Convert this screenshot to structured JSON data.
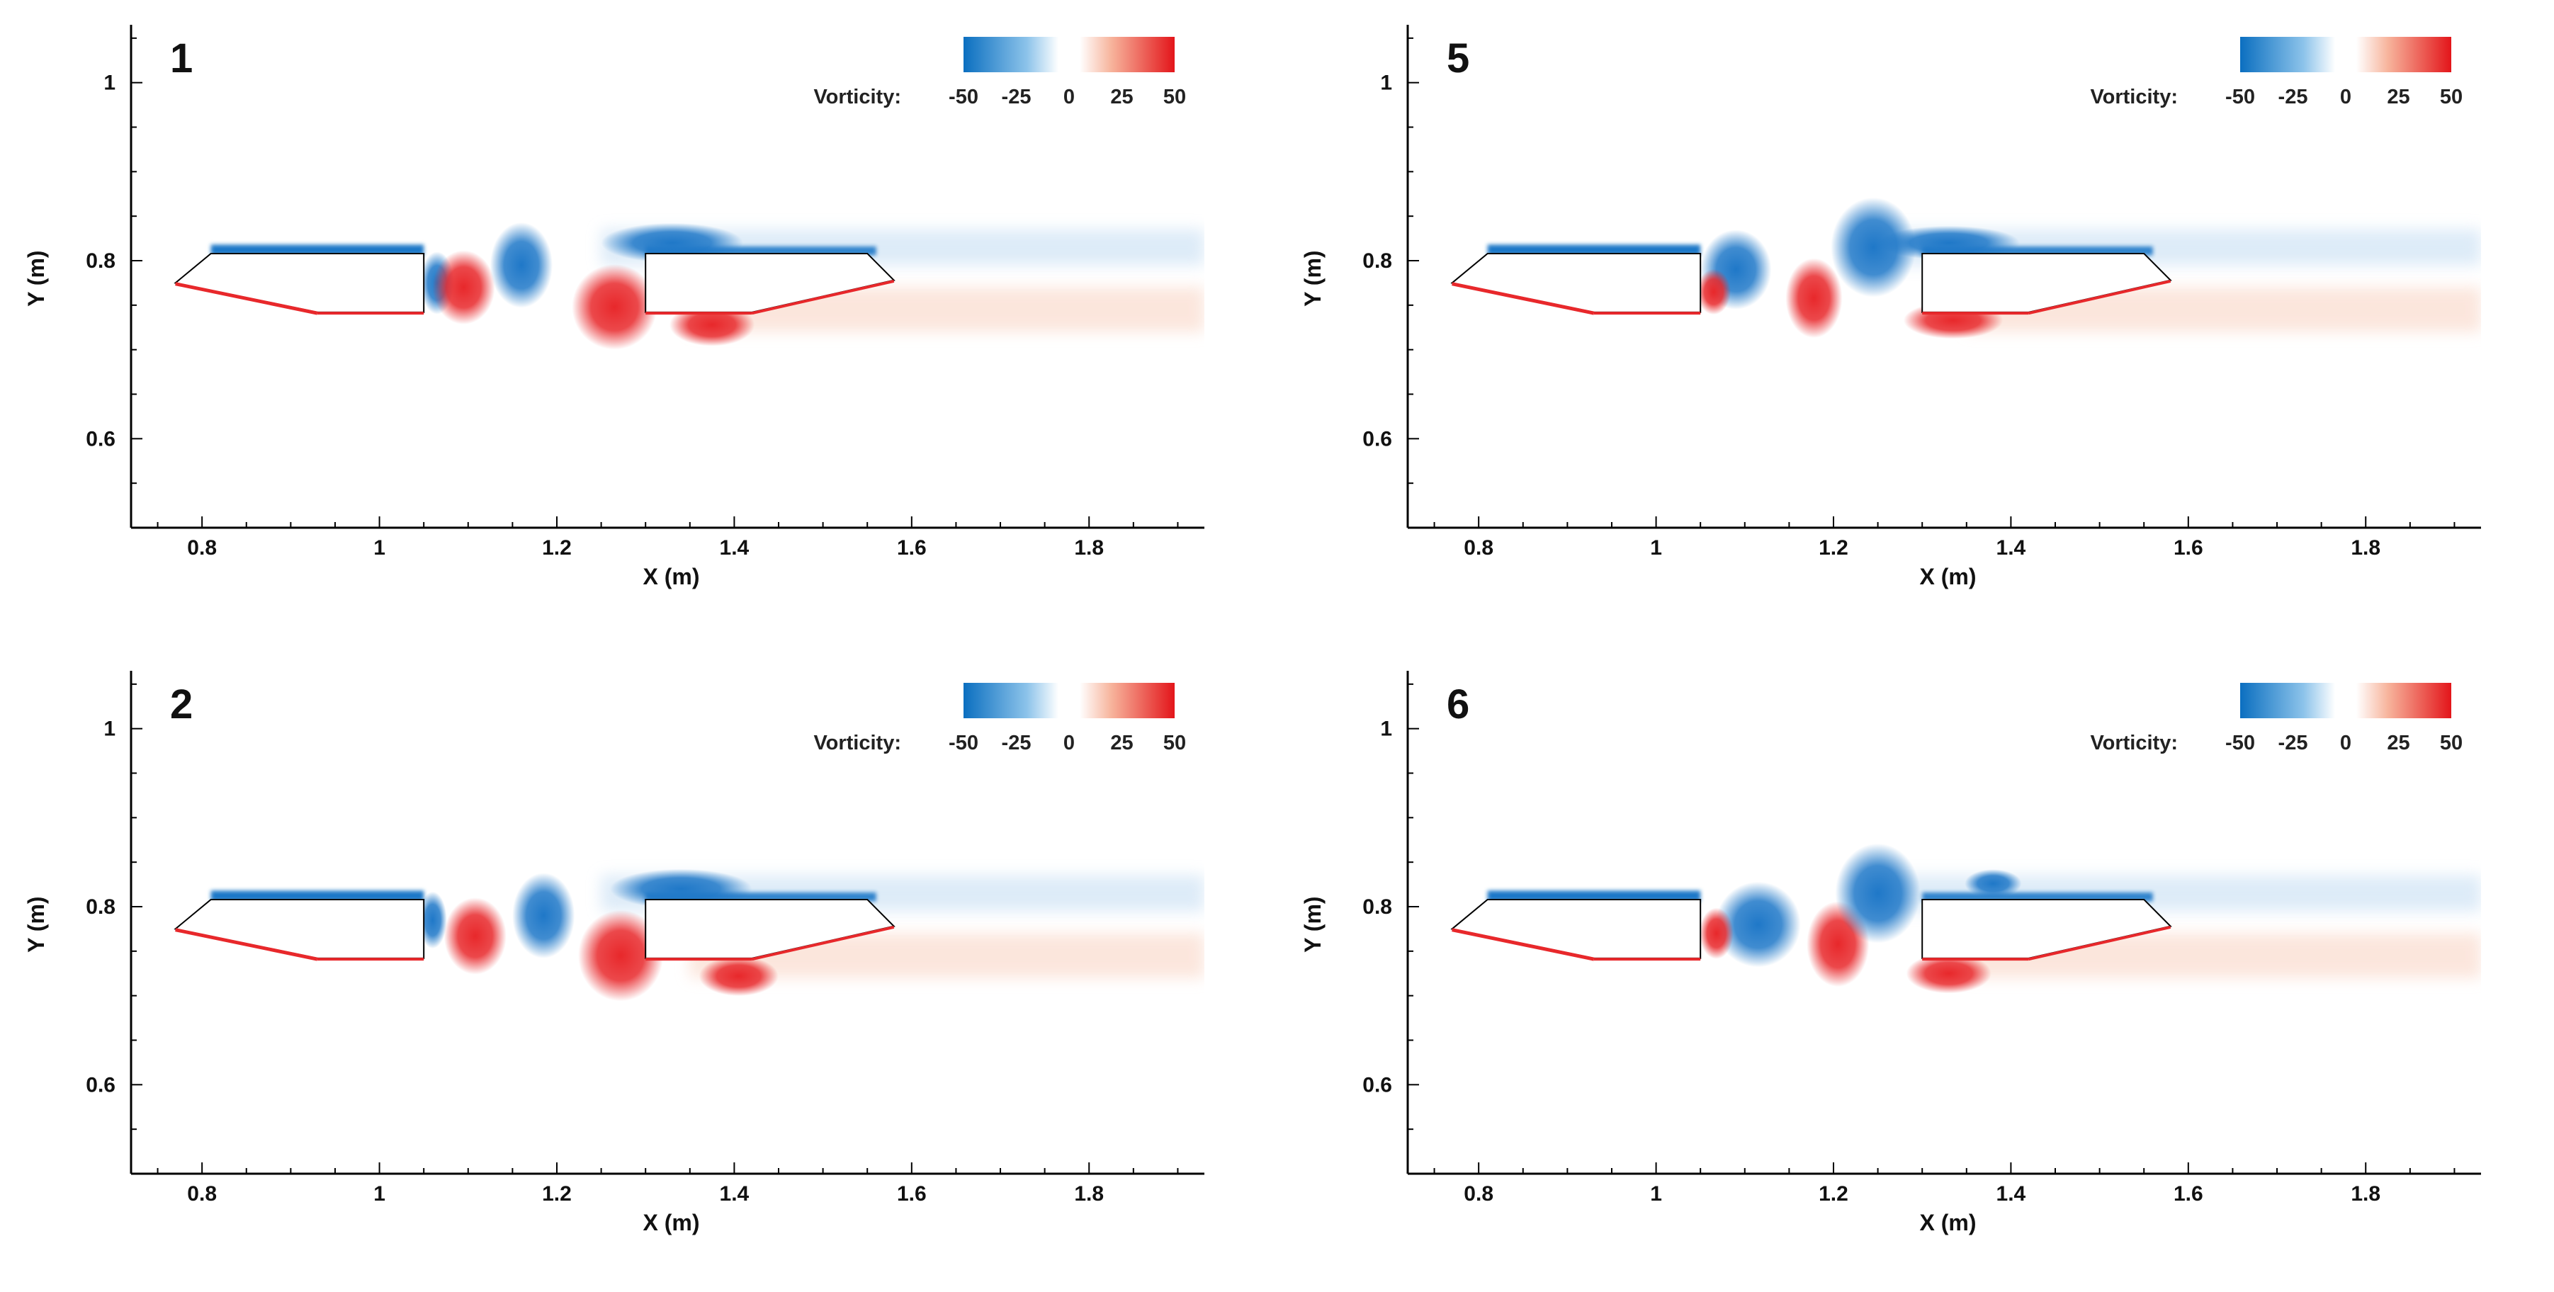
{
  "colors": {
    "negative": "#1f78c8",
    "positive": "#e8282b",
    "neutral": "#ffffff",
    "body_outline": "#000000"
  },
  "colorbar": {
    "title": "Vorticity:",
    "ticks": [
      "-50",
      "-25",
      "0",
      "25",
      "50"
    ],
    "range": [
      -50,
      50
    ]
  },
  "chart_data": [
    {
      "type": "heatmap",
      "panel_label": "1",
      "xlabel": "X (m)",
      "ylabel": "Y (m)",
      "xlim": [
        0.72,
        1.93
      ],
      "ylim": [
        0.5,
        1.065
      ],
      "xticks": [
        0.8,
        1,
        1.2,
        1.4,
        1.6,
        1.8
      ],
      "xtick_labels": [
        "0.8",
        "1",
        "1.2",
        "1.4",
        "1.6",
        "1.8"
      ],
      "yticks": [
        0.6,
        0.8,
        1
      ],
      "ytick_labels": [
        "0.6",
        "0.8",
        "1"
      ],
      "vortices": [
        {
          "sign": "neg",
          "x": 1.065,
          "y": 0.775,
          "rx": 0.012,
          "ry": 0.022
        },
        {
          "sign": "pos",
          "x": 1.095,
          "y": 0.77,
          "rx": 0.022,
          "ry": 0.026
        },
        {
          "sign": "neg",
          "x": 1.16,
          "y": 0.795,
          "rx": 0.022,
          "ry": 0.03
        },
        {
          "sign": "pos",
          "x": 1.265,
          "y": 0.748,
          "rx": 0.03,
          "ry": 0.03
        },
        {
          "sign": "pos",
          "x": 1.375,
          "y": 0.728,
          "rx": 0.03,
          "ry": 0.015
        },
        {
          "sign": "neg",
          "x": 1.33,
          "y": 0.82,
          "rx": 0.05,
          "ry": 0.014
        }
      ]
    },
    {
      "type": "heatmap",
      "panel_label": "5",
      "xlabel": "X (m)",
      "ylabel": "Y (m)",
      "xlim": [
        0.72,
        1.93
      ],
      "ylim": [
        0.5,
        1.065
      ],
      "xticks": [
        0.8,
        1,
        1.2,
        1.4,
        1.6,
        1.8
      ],
      "xtick_labels": [
        "0.8",
        "1",
        "1.2",
        "1.4",
        "1.6",
        "1.8"
      ],
      "yticks": [
        0.6,
        0.8,
        1
      ],
      "ytick_labels": [
        "0.6",
        "0.8",
        "1"
      ],
      "vortices": [
        {
          "sign": "neg",
          "x": 1.09,
          "y": 0.79,
          "rx": 0.025,
          "ry": 0.028
        },
        {
          "sign": "pos",
          "x": 1.065,
          "y": 0.765,
          "rx": 0.012,
          "ry": 0.016
        },
        {
          "sign": "pos",
          "x": 1.178,
          "y": 0.758,
          "rx": 0.02,
          "ry": 0.028
        },
        {
          "sign": "neg",
          "x": 1.245,
          "y": 0.815,
          "rx": 0.03,
          "ry": 0.035
        },
        {
          "sign": "pos",
          "x": 1.335,
          "y": 0.733,
          "rx": 0.035,
          "ry": 0.013
        },
        {
          "sign": "neg",
          "x": 1.33,
          "y": 0.82,
          "rx": 0.05,
          "ry": 0.012
        }
      ]
    },
    {
      "type": "heatmap",
      "panel_label": "2",
      "xlabel": "X (m)",
      "ylabel": "Y (m)",
      "xlim": [
        0.72,
        1.93
      ],
      "ylim": [
        0.5,
        1.065
      ],
      "xticks": [
        0.8,
        1,
        1.2,
        1.4,
        1.6,
        1.8
      ],
      "xtick_labels": [
        "0.8",
        "1",
        "1.2",
        "1.4",
        "1.6",
        "1.8"
      ],
      "yticks": [
        0.6,
        0.8,
        1
      ],
      "ytick_labels": [
        "0.6",
        "0.8",
        "1"
      ],
      "vortices": [
        {
          "sign": "neg",
          "x": 1.06,
          "y": 0.785,
          "rx": 0.01,
          "ry": 0.02
        },
        {
          "sign": "pos",
          "x": 1.108,
          "y": 0.767,
          "rx": 0.022,
          "ry": 0.027
        },
        {
          "sign": "neg",
          "x": 1.185,
          "y": 0.79,
          "rx": 0.022,
          "ry": 0.03
        },
        {
          "sign": "pos",
          "x": 1.272,
          "y": 0.745,
          "rx": 0.03,
          "ry": 0.032
        },
        {
          "sign": "pos",
          "x": 1.405,
          "y": 0.722,
          "rx": 0.028,
          "ry": 0.014
        },
        {
          "sign": "neg",
          "x": 1.34,
          "y": 0.82,
          "rx": 0.05,
          "ry": 0.014
        }
      ]
    },
    {
      "type": "heatmap",
      "panel_label": "6",
      "xlabel": "X (m)",
      "ylabel": "Y (m)",
      "xlim": [
        0.72,
        1.93
      ],
      "ylim": [
        0.5,
        1.065
      ],
      "xticks": [
        0.8,
        1,
        1.2,
        1.4,
        1.6,
        1.8
      ],
      "xtick_labels": [
        "0.8",
        "1",
        "1.2",
        "1.4",
        "1.6",
        "1.8"
      ],
      "yticks": [
        0.6,
        0.8,
        1
      ],
      "ytick_labels": [
        "0.6",
        "0.8",
        "1"
      ],
      "vortices": [
        {
          "sign": "neg",
          "x": 1.115,
          "y": 0.78,
          "rx": 0.03,
          "ry": 0.03
        },
        {
          "sign": "pos",
          "x": 1.068,
          "y": 0.77,
          "rx": 0.012,
          "ry": 0.018
        },
        {
          "sign": "pos",
          "x": 1.205,
          "y": 0.758,
          "rx": 0.022,
          "ry": 0.03
        },
        {
          "sign": "neg",
          "x": 1.25,
          "y": 0.815,
          "rx": 0.03,
          "ry": 0.035
        },
        {
          "sign": "pos",
          "x": 1.33,
          "y": 0.725,
          "rx": 0.03,
          "ry": 0.014
        },
        {
          "sign": "neg",
          "x": 1.38,
          "y": 0.826,
          "rx": 0.02,
          "ry": 0.01
        }
      ]
    }
  ]
}
